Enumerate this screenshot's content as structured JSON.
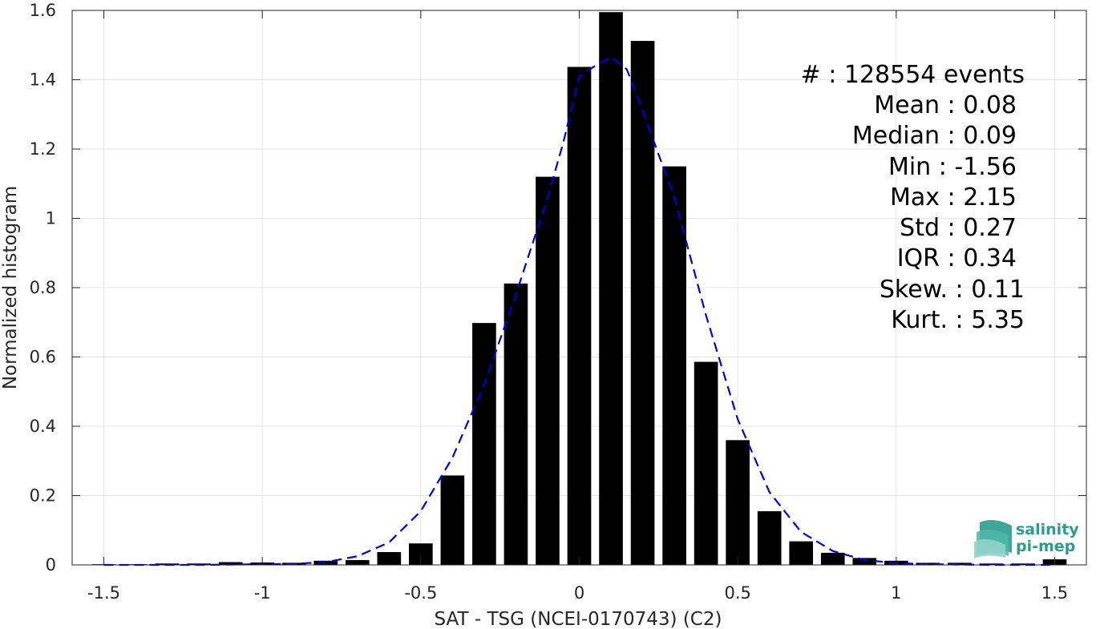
{
  "chart_data": {
    "type": "bar",
    "xlabel": "SAT - TSG (NCEI-0170743) (C2)",
    "ylabel": "Normalized histogram",
    "xlim": [
      -1.6,
      1.6
    ],
    "ylim": [
      0,
      1.6
    ],
    "xticks": [
      "-1.5",
      "-1",
      "-0.5",
      "0",
      "0.5",
      "1",
      "1.5"
    ],
    "xtick_values": [
      -1.5,
      -1,
      -0.5,
      0,
      0.5,
      1,
      1.5
    ],
    "yticks": [
      "0",
      "0.2",
      "0.4",
      "0.6",
      "0.8",
      "1",
      "1.2",
      "1.4",
      "1.6"
    ],
    "ytick_values": [
      0,
      0.2,
      0.4,
      0.6,
      0.8,
      1,
      1.2,
      1.4,
      1.6
    ],
    "grid": true,
    "bar_color": "#000000",
    "fit_color": "#0000dd",
    "bars": [
      {
        "x": -1.5,
        "y": 0.002
      },
      {
        "x": -1.4,
        "y": 0.002
      },
      {
        "x": -1.3,
        "y": 0.004
      },
      {
        "x": -1.2,
        "y": 0.004
      },
      {
        "x": -1.1,
        "y": 0.008
      },
      {
        "x": -1.0,
        "y": 0.007
      },
      {
        "x": -0.9,
        "y": 0.006
      },
      {
        "x": -0.8,
        "y": 0.012
      },
      {
        "x": -0.7,
        "y": 0.014
      },
      {
        "x": -0.6,
        "y": 0.037
      },
      {
        "x": -0.5,
        "y": 0.062
      },
      {
        "x": -0.4,
        "y": 0.258
      },
      {
        "x": -0.3,
        "y": 0.698
      },
      {
        "x": -0.2,
        "y": 0.812
      },
      {
        "x": -0.1,
        "y": 1.12
      },
      {
        "x": 0.0,
        "y": 1.437
      },
      {
        "x": 0.1,
        "y": 1.595
      },
      {
        "x": 0.2,
        "y": 1.512
      },
      {
        "x": 0.3,
        "y": 1.15
      },
      {
        "x": 0.4,
        "y": 0.586
      },
      {
        "x": 0.5,
        "y": 0.36
      },
      {
        "x": 0.6,
        "y": 0.155
      },
      {
        "x": 0.7,
        "y": 0.068
      },
      {
        "x": 0.8,
        "y": 0.035
      },
      {
        "x": 0.9,
        "y": 0.02
      },
      {
        "x": 1.0,
        "y": 0.012
      },
      {
        "x": 1.1,
        "y": 0.006
      },
      {
        "x": 1.2,
        "y": 0.006
      },
      {
        "x": 1.3,
        "y": 0.004
      },
      {
        "x": 1.4,
        "y": 0.004
      },
      {
        "x": 1.5,
        "y": 0.016
      }
    ],
    "fit_curve": [
      [
        -1.5,
        0.0
      ],
      [
        -1.4,
        0.0
      ],
      [
        -1.3,
        0.0
      ],
      [
        -1.2,
        0.0
      ],
      [
        -1.1,
        0.001
      ],
      [
        -1.0,
        0.002
      ],
      [
        -0.9,
        0.003
      ],
      [
        -0.8,
        0.008
      ],
      [
        -0.7,
        0.025
      ],
      [
        -0.6,
        0.065
      ],
      [
        -0.5,
        0.155
      ],
      [
        -0.4,
        0.31
      ],
      [
        -0.3,
        0.52
      ],
      [
        -0.2,
        0.78
      ],
      [
        -0.1,
        1.06
      ],
      [
        -0.05,
        1.22
      ],
      [
        0.0,
        1.41
      ],
      [
        0.05,
        1.44
      ],
      [
        0.1,
        1.465
      ],
      [
        0.15,
        1.43
      ],
      [
        0.2,
        1.31
      ],
      [
        0.3,
        1.06
      ],
      [
        0.4,
        0.72
      ],
      [
        0.5,
        0.42
      ],
      [
        0.6,
        0.21
      ],
      [
        0.7,
        0.095
      ],
      [
        0.8,
        0.04
      ],
      [
        0.9,
        0.014
      ],
      [
        1.0,
        0.005
      ],
      [
        1.1,
        0.002
      ],
      [
        1.2,
        0.001
      ],
      [
        1.3,
        0.0
      ],
      [
        1.4,
        0.0
      ],
      [
        1.5,
        0.0
      ]
    ]
  },
  "stats": [
    {
      "label": "#  : 128554 events",
      "value": ""
    },
    {
      "label": "Mean : 0.08",
      "value": ""
    },
    {
      "label": "Median : 0.09",
      "value": ""
    },
    {
      "label": "Min : -1.56",
      "value": ""
    },
    {
      "label": "Max : 2.15",
      "value": ""
    },
    {
      "label": "Std : 0.27",
      "value": ""
    },
    {
      "label": "IQR : 0.34",
      "value": ""
    },
    {
      "label": "Skew. : 0.11",
      "value": ""
    },
    {
      "label": "Kurt. : 5.35",
      "value": ""
    }
  ],
  "logo": {
    "line1": "salinity",
    "line2": "pi-mep",
    "color": "#2a9d8f"
  }
}
